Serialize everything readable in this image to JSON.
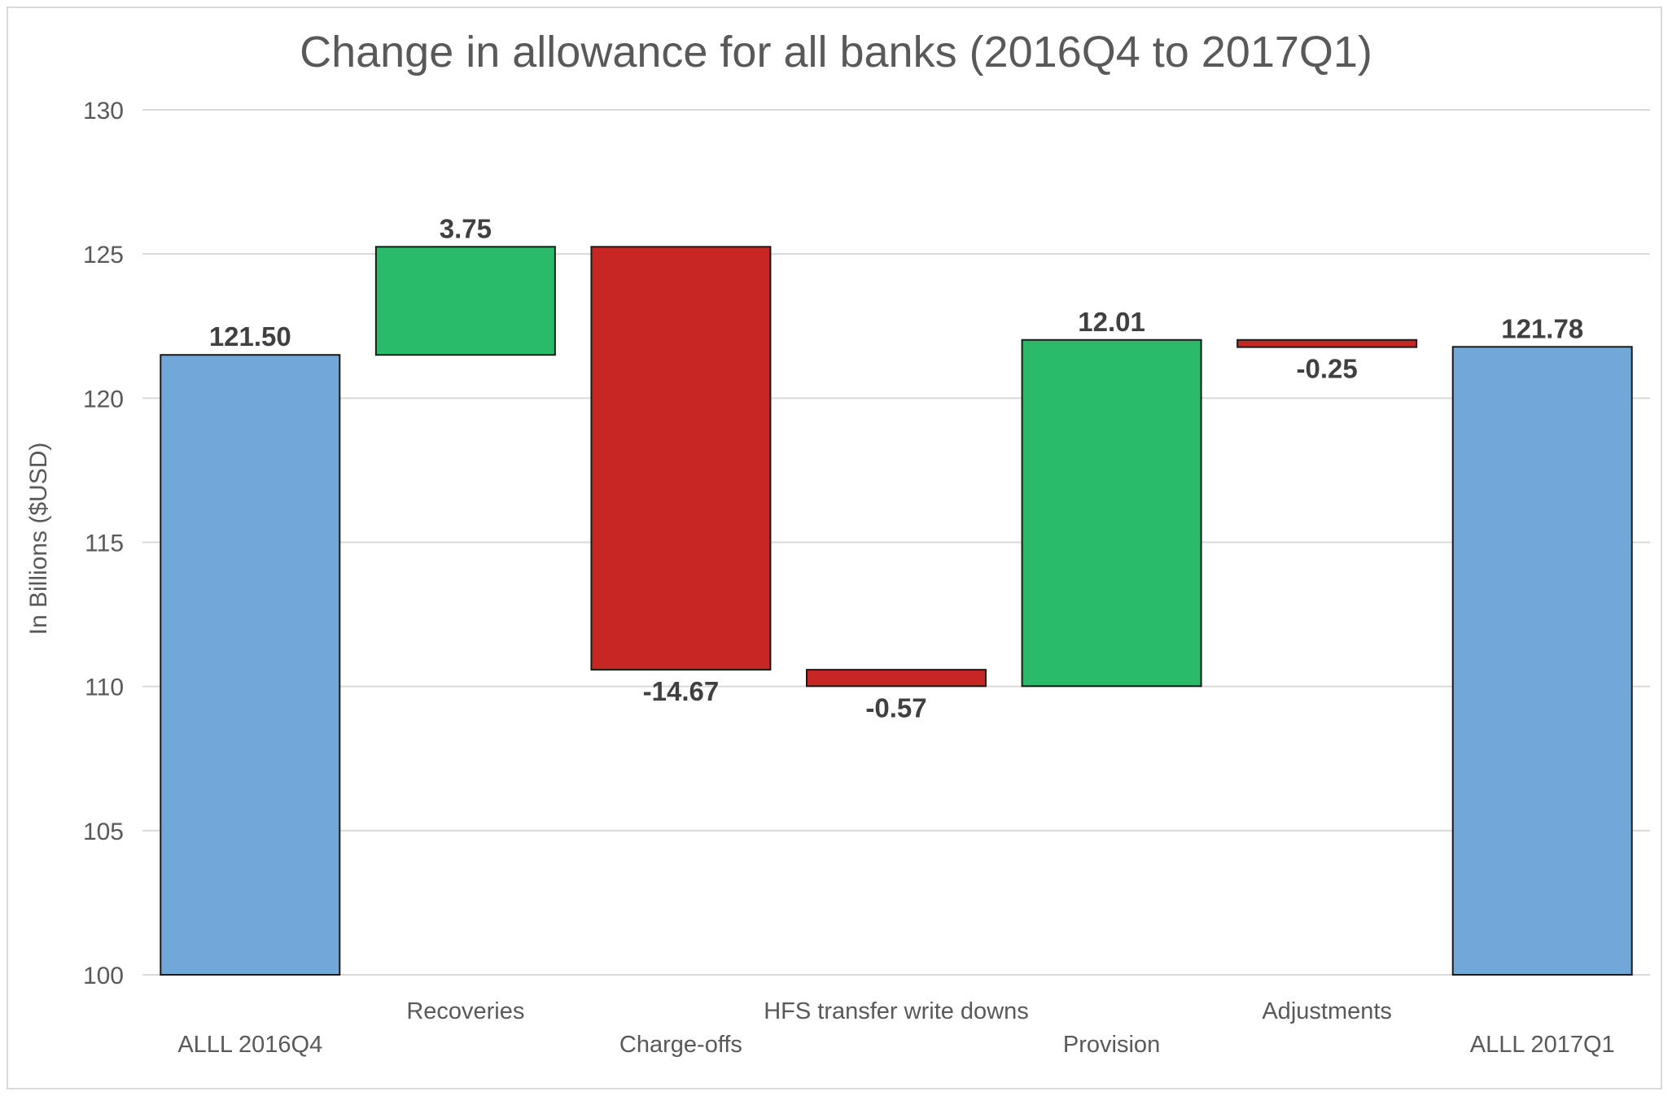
{
  "chart_data": {
    "type": "bar",
    "subtype": "waterfall",
    "title": "Change in allowance for all banks (2016Q4 to 2017Q1)",
    "ylabel": "In Billions ($USD)",
    "xlabel": "",
    "ylim": [
      100,
      130
    ],
    "yticks": [
      "100",
      "105",
      "110",
      "115",
      "120",
      "125",
      "130"
    ],
    "grid": true,
    "legend": "none",
    "categories": [
      "ALLL 2016Q4",
      "Recoveries",
      "Charge-offs",
      "HFS transfer write downs",
      "Provision",
      "Adjustments",
      "ALLL 2017Q1"
    ],
    "values": [
      121.5,
      3.75,
      -14.67,
      -0.57,
      12.01,
      -0.25,
      121.78
    ],
    "kinds": [
      "total",
      "increase",
      "decrease",
      "decrease",
      "increase",
      "decrease",
      "total"
    ],
    "data_labels": [
      "121.50",
      "3.75",
      "-14.67",
      "-0.57",
      "12.01",
      "-0.25",
      "121.78"
    ],
    "colors": {
      "total": "#70a8da",
      "increase": "#2abb6a",
      "decrease": "#c82525",
      "grid": "#d9d9d9",
      "bar_edge": "#1a1a1a"
    }
  }
}
